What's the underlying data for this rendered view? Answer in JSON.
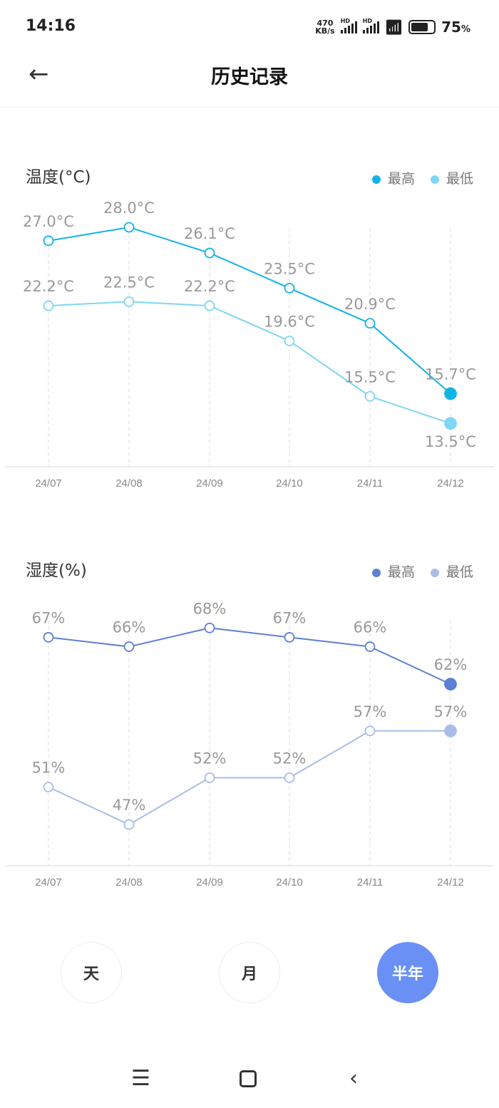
{
  "status": {
    "time": "14:16",
    "net_speed_value": "470",
    "net_speed_unit": "KB/s",
    "sim1": "HD",
    "sim2": "HD",
    "battery_percent": 75,
    "battery_text": "75",
    "battery_unit": "%"
  },
  "header": {
    "title": "历史记录",
    "back_icon": "arrow-left-icon"
  },
  "charts": [
    {
      "title": "温度(°C)",
      "legend": [
        {
          "label": "最高",
          "color": "#12b4e6"
        },
        {
          "label": "最低",
          "color": "#7fd6f2"
        }
      ]
    },
    {
      "title": "湿度(%)",
      "legend": [
        {
          "label": "最高",
          "color": "#5b80d4"
        },
        {
          "label": "最低",
          "color": "#a9bde8"
        }
      ]
    }
  ],
  "chart_data": [
    {
      "type": "line",
      "title": "温度(°C)",
      "categories": [
        "24/07",
        "24/08",
        "24/09",
        "24/10",
        "24/11",
        "24/12"
      ],
      "ylim": [
        10.3,
        30
      ],
      "grid": "vertical-dashed",
      "legend_placement": "top-right",
      "series": [
        {
          "name": "最高",
          "color": "#12b4e6",
          "values": [
            27.0,
            28.0,
            26.1,
            23.5,
            20.9,
            15.7
          ],
          "labels": [
            "27.0°C",
            "28.0°C",
            "26.1°C",
            "23.5°C",
            "20.9°C",
            "15.7°C"
          ]
        },
        {
          "name": "最低",
          "color": "#7fd6f2",
          "values": [
            22.2,
            22.5,
            22.2,
            19.6,
            15.5,
            13.5
          ],
          "labels": [
            "22.2°C",
            "22.5°C",
            "22.2°C",
            "19.6°C",
            "15.5°C",
            "13.5°C"
          ]
        }
      ]
    },
    {
      "type": "line",
      "title": "湿度(%)",
      "categories": [
        "24/07",
        "24/08",
        "24/09",
        "24/10",
        "24/11",
        "24/12"
      ],
      "ylim": [
        42.6,
        70
      ],
      "grid": "vertical-dashed",
      "legend_placement": "top-right",
      "series": [
        {
          "name": "最高",
          "color": "#5b80d4",
          "values": [
            67,
            66,
            68,
            67,
            66,
            62
          ],
          "labels": [
            "67%",
            "66%",
            "68%",
            "67%",
            "66%",
            "62%"
          ]
        },
        {
          "name": "最低",
          "color": "#a9bde8",
          "values": [
            51,
            47,
            52,
            52,
            57,
            57
          ],
          "labels": [
            "51%",
            "47%",
            "52%",
            "52%",
            "57%",
            "57%"
          ]
        }
      ]
    }
  ],
  "range_buttons": [
    {
      "label": "天",
      "active": false
    },
    {
      "label": "月",
      "active": false
    },
    {
      "label": "半年",
      "active": true
    }
  ],
  "accent": "#6a8ff5",
  "navbar": {
    "menu_icon": "menu-icon",
    "home_icon": "home-square-icon",
    "back_icon": "back-chevron-icon"
  }
}
